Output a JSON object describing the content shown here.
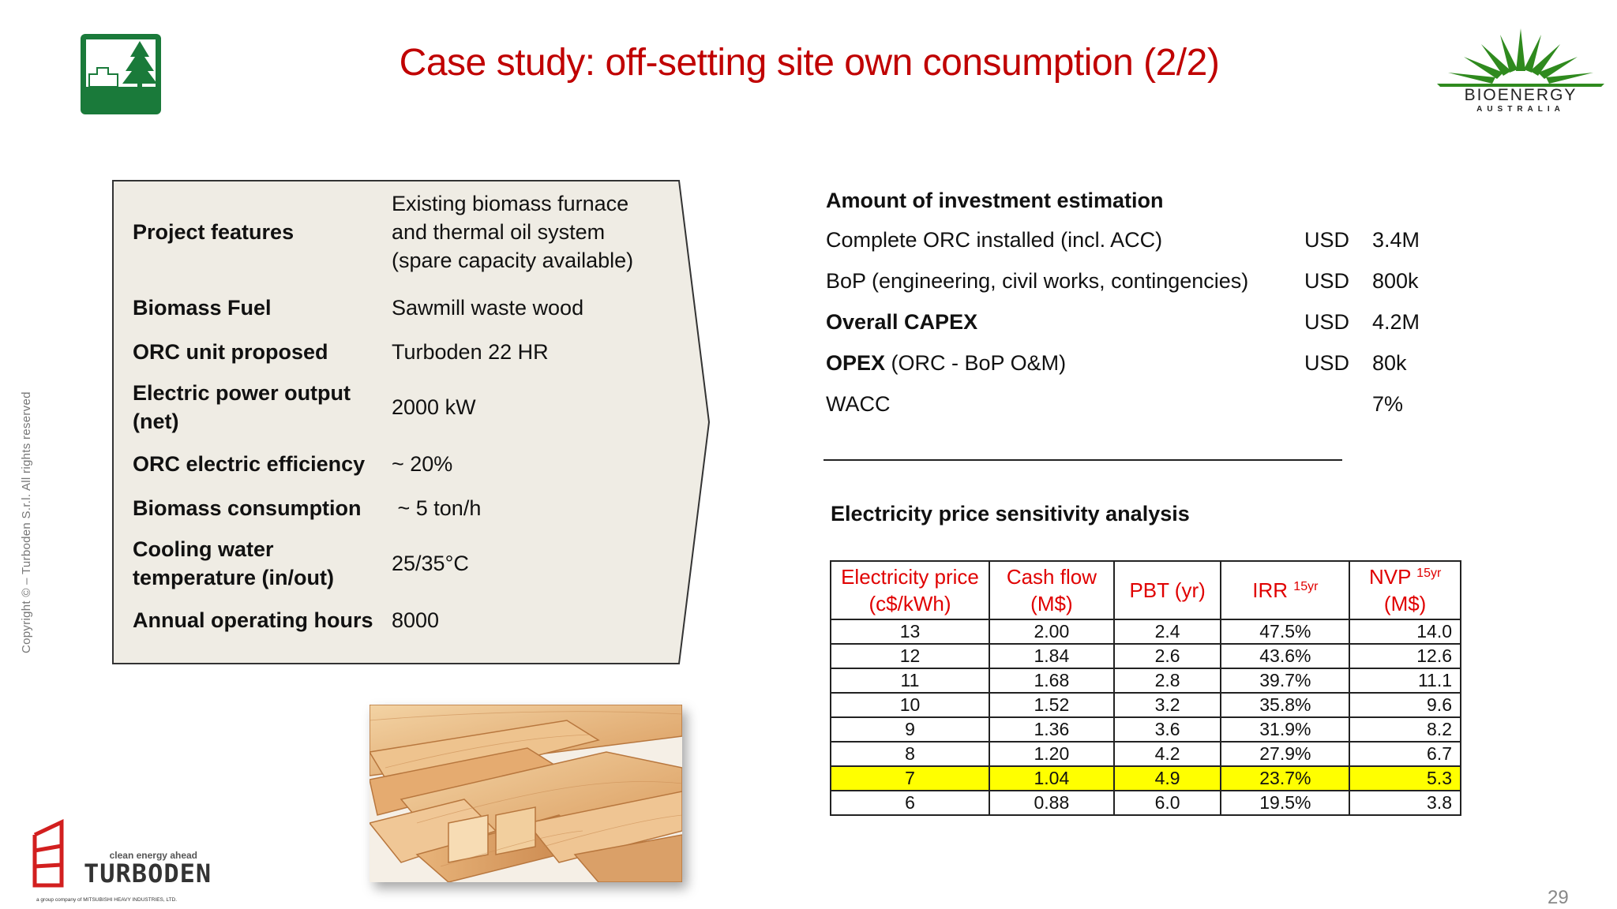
{
  "title": "Case study: off-setting site own consumption (2/2)",
  "copyright": "Copyright © – Turboden S.r.l. All rights reserved",
  "logo_right": {
    "name": "BIOENERGY",
    "sub": "AUSTRALIA"
  },
  "logo_turboden": {
    "name": "TURBODEN",
    "tagline": "clean energy ahead",
    "group": "a group company of  MITSUBISHI HEAVY INDUSTRIES, LTD."
  },
  "features": [
    {
      "label": "Project features",
      "value": "Existing biomass furnace and thermal oil system (spare capacity available)"
    },
    {
      "label": "Biomass Fuel",
      "value": "Sawmill waste wood"
    },
    {
      "label": "ORC unit proposed",
      "value": "Turboden 22 HR"
    },
    {
      "label": "Electric power output (net)",
      "value": "2000 kW"
    },
    {
      "label": "ORC electric efficiency",
      "value": "~ 20%"
    },
    {
      "label": "Biomass consumption",
      "value": " ~ 5 ton/h"
    },
    {
      "label": "Cooling water temperature (in/out)",
      "value": "25/35°C"
    },
    {
      "label": "Annual operating hours",
      "value": "8000"
    }
  ],
  "investment": {
    "heading": "Amount of investment estimation",
    "rows": [
      {
        "label": "Complete ORC installed (incl. ACC)",
        "currency": "USD",
        "value": "3.4M"
      },
      {
        "label": "BoP (engineering, civil works, contingencies)",
        "currency": "USD",
        "value": "800k"
      },
      {
        "label": "Overall CAPEX",
        "currency": "USD",
        "value": "4.2M"
      },
      {
        "label": "OPEX",
        "label_suffix": " (ORC - BoP O&M)",
        "currency": "USD",
        "value": "80k"
      },
      {
        "label": "WACC",
        "currency": "",
        "value": "7%"
      }
    ]
  },
  "sensitivity": {
    "title": "Electricity price sensitivity analysis",
    "headers": [
      {
        "text": "Electricity price (c$/kWh)",
        "sup": ""
      },
      {
        "text": "Cash flow (M$)",
        "sup": ""
      },
      {
        "text": "PBT (yr)",
        "sup": ""
      },
      {
        "text": "IRR ",
        "sup": "15yr"
      },
      {
        "text": "NVP ",
        "sup": "15yr",
        "line2": "(M$)"
      }
    ],
    "highlight_color": "#ffff00",
    "rows": [
      [
        "13",
        "2.00",
        "2.4",
        "47.5%",
        "14.0"
      ],
      [
        "12",
        "1.84",
        "2.6",
        "43.6%",
        "12.6"
      ],
      [
        "11",
        "1.68",
        "2.8",
        "39.7%",
        "11.1"
      ],
      [
        "10",
        "1.52",
        "3.2",
        "35.8%",
        "9.6"
      ],
      [
        "9",
        "1.36",
        "3.6",
        "31.9%",
        "8.2"
      ],
      [
        "8",
        "1.20",
        "4.2",
        "27.9%",
        "6.7"
      ],
      [
        "7",
        "1.04",
        "4.9",
        "23.7%",
        "5.3"
      ],
      [
        "6",
        "0.88",
        "6.0",
        "19.5%",
        "3.8"
      ]
    ],
    "highlighted_row": "7"
  },
  "page_number": "29",
  "colors": {
    "title": "#c00000",
    "header": "#e00000",
    "panel": "#efece4",
    "logo_green": "#1a7a3a"
  }
}
